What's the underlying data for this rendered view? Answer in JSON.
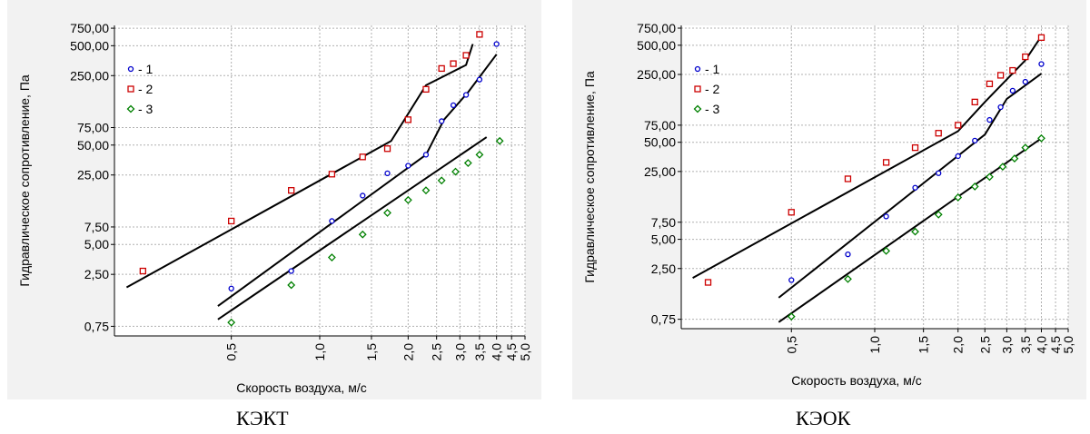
{
  "chart_data": [
    {
      "type": "scatter",
      "caption": "КЭКТ",
      "xlabel": "Скорость воздуха, м/с",
      "ylabel": "Гидравлическое сопротивление, Па",
      "x_scale": "log",
      "y_scale": "log",
      "xlim": [
        0.2,
        5.0
      ],
      "ylim": [
        0.6,
        800
      ],
      "xticks": [
        "0,5",
        "1,0",
        "1,5",
        "2,0",
        "2,5",
        "3,0",
        "3,5",
        "4,0",
        "4,5",
        "5,0"
      ],
      "xtick_values": [
        0.5,
        1.0,
        1.5,
        2.0,
        2.5,
        3.0,
        3.5,
        4.0,
        4.5,
        5.0
      ],
      "yticks": [
        "0,75",
        "2,50",
        "5,00",
        "7,50",
        "25,00",
        "50,00",
        "75,00",
        "250,00",
        "500,00",
        "750,00"
      ],
      "ytick_values": [
        0.75,
        2.5,
        5,
        7.5,
        25,
        50,
        75,
        250,
        500,
        750
      ],
      "grid": true,
      "legend_position": "top-left",
      "series": [
        {
          "name": "- 1",
          "marker": "circle",
          "color": "#0000cc",
          "points": [
            [
              0.5,
              1.8
            ],
            [
              0.8,
              2.7
            ],
            [
              1.1,
              8.6
            ],
            [
              1.4,
              15.5
            ],
            [
              1.7,
              26
            ],
            [
              2.0,
              31
            ],
            [
              2.3,
              40
            ],
            [
              2.6,
              87
            ],
            [
              2.85,
              126
            ],
            [
              3.15,
              160
            ],
            [
              3.5,
              228
            ],
            [
              4.0,
              520
            ]
          ]
        },
        {
          "name": "- 2",
          "marker": "square",
          "color": "#cc0000",
          "points": [
            [
              0.25,
              2.7
            ],
            [
              0.5,
              8.6
            ],
            [
              0.8,
              17.5
            ],
            [
              1.1,
              25.5
            ],
            [
              1.4,
              38
            ],
            [
              1.7,
              46
            ],
            [
              2.0,
              90
            ],
            [
              2.3,
              182
            ],
            [
              2.6,
              295
            ],
            [
              2.85,
              330
            ],
            [
              3.15,
              400
            ],
            [
              3.5,
              650
            ]
          ]
        },
        {
          "name": "- 3",
          "marker": "diamond",
          "color": "#008000",
          "points": [
            [
              0.5,
              0.82
            ],
            [
              0.8,
              1.95
            ],
            [
              1.1,
              3.7
            ],
            [
              1.4,
              6.3
            ],
            [
              1.7,
              10.4
            ],
            [
              2.0,
              14.0
            ],
            [
              2.3,
              17.5
            ],
            [
              2.6,
              22
            ],
            [
              2.9,
              27
            ],
            [
              3.2,
              33
            ],
            [
              3.5,
              40
            ],
            [
              4.1,
              55
            ]
          ]
        }
      ],
      "fit_lines": [
        [
          [
            0.22,
            1.85
          ],
          [
            1.75,
            55
          ],
          [
            2.3,
            200
          ],
          [
            3.15,
            320
          ],
          [
            3.32,
            520
          ]
        ],
        [
          [
            0.45,
            1.2
          ],
          [
            2.3,
            40
          ],
          [
            2.65,
            90
          ],
          [
            3.2,
            170
          ],
          [
            4.0,
            410
          ]
        ],
        [
          [
            0.45,
            0.88
          ],
          [
            3.7,
            60
          ]
        ]
      ]
    },
    {
      "type": "scatter",
      "caption": "КЭОК",
      "xlabel": "Скорость воздуха, м/с",
      "ylabel": "Гидравлическое сопротивление, Па",
      "x_scale": "log",
      "y_scale": "log",
      "xlim": [
        0.2,
        5.0
      ],
      "ylim": [
        0.6,
        800
      ],
      "xticks": [
        "0,5",
        "1,0",
        "1,5",
        "2,0",
        "2,5",
        "3,0",
        "3,5",
        "4,0",
        "4,5",
        "5,0"
      ],
      "xtick_values": [
        0.5,
        1.0,
        1.5,
        2.0,
        2.5,
        3.0,
        3.5,
        4.0,
        4.5,
        5.0
      ],
      "yticks": [
        "0,75",
        "2,50",
        "5,00",
        "7,50",
        "25,00",
        "50,00",
        "75,00",
        "250,00",
        "500,00",
        "750,00"
      ],
      "ytick_values": [
        0.75,
        2.5,
        5,
        7.5,
        25,
        50,
        75,
        250,
        500,
        750
      ],
      "grid": true,
      "legend_position": "top-left",
      "series": [
        {
          "name": "- 1",
          "marker": "circle",
          "color": "#0000cc",
          "points": [
            [
              0.5,
              1.9
            ],
            [
              0.8,
              3.5
            ],
            [
              1.1,
              8.6
            ],
            [
              1.4,
              17
            ],
            [
              1.7,
              24
            ],
            [
              2.0,
              36
            ],
            [
              2.3,
              52
            ],
            [
              2.6,
              85
            ],
            [
              2.85,
              115
            ],
            [
              3.15,
              170
            ],
            [
              3.5,
              210
            ],
            [
              4.0,
              320
            ]
          ]
        },
        {
          "name": "- 2",
          "marker": "square",
          "color": "#cc0000",
          "points": [
            [
              0.25,
              1.8
            ],
            [
              0.5,
              9.5
            ],
            [
              0.8,
              21
            ],
            [
              1.1,
              31
            ],
            [
              1.4,
              44
            ],
            [
              1.7,
              62
            ],
            [
              2.0,
              75
            ],
            [
              2.3,
              130
            ],
            [
              2.6,
              200
            ],
            [
              2.85,
              245
            ],
            [
              3.15,
              275
            ],
            [
              3.5,
              380
            ],
            [
              4.0,
              600
            ]
          ]
        },
        {
          "name": "- 3",
          "marker": "diamond",
          "color": "#008000",
          "points": [
            [
              0.5,
              0.8
            ],
            [
              0.8,
              1.95
            ],
            [
              1.1,
              3.8
            ],
            [
              1.4,
              6.0
            ],
            [
              1.7,
              9.0
            ],
            [
              2.0,
              13.5
            ],
            [
              2.3,
              17.5
            ],
            [
              2.6,
              22
            ],
            [
              2.9,
              28
            ],
            [
              3.2,
              34
            ],
            [
              3.5,
              44
            ],
            [
              4.0,
              55
            ]
          ]
        }
      ],
      "fit_lines": [
        [
          [
            0.22,
            2.0
          ],
          [
            2.0,
            65
          ],
          [
            2.5,
            130
          ],
          [
            3.5,
            350
          ],
          [
            4.0,
            620
          ]
        ],
        [
          [
            0.45,
            1.25
          ],
          [
            2.5,
            60
          ],
          [
            3.0,
            140
          ],
          [
            4.0,
            255
          ]
        ],
        [
          [
            0.45,
            0.7
          ],
          [
            4.0,
            55
          ]
        ]
      ]
    }
  ]
}
